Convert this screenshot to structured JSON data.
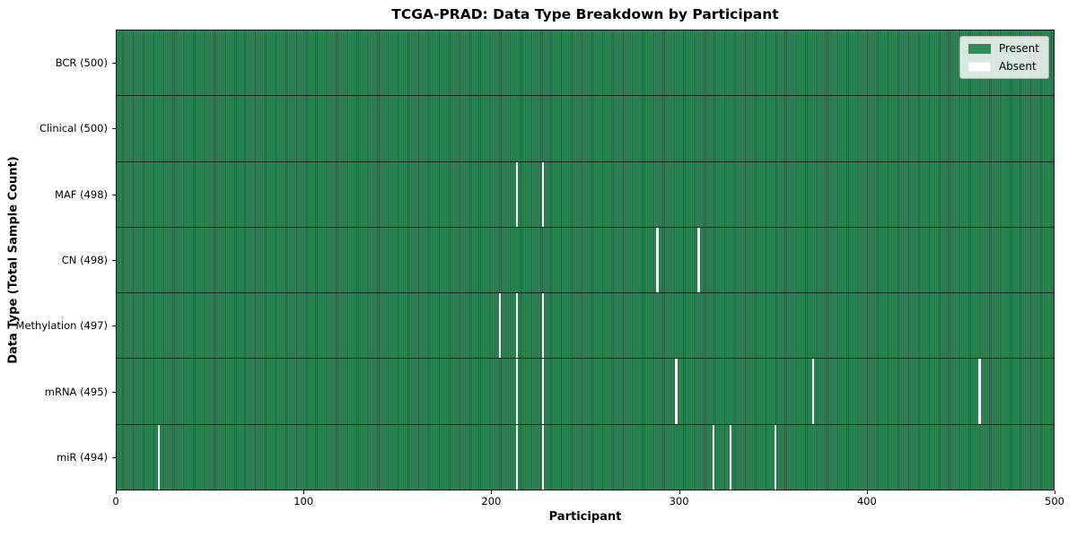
{
  "chart_data": {
    "type": "heatmap",
    "title": "TCGA-PRAD: Data Type Breakdown by Participant",
    "xlabel": "Participant",
    "ylabel": "Data Type (Total Sample Count)",
    "xlim": [
      0,
      500
    ],
    "n_participants": 500,
    "x_ticks": [
      0,
      100,
      200,
      300,
      400,
      500
    ],
    "grid": false,
    "legend_position": "upper right",
    "legend_items": [
      {
        "label": "Present",
        "color": "#2e8b57"
      },
      {
        "label": "Absent",
        "color": "#ffffff"
      }
    ],
    "colors": {
      "present": "#2e8b57",
      "present_stripe_dark": "#1f5d3b",
      "absent": "#ffffff",
      "row_divider": "#1a231b",
      "spine": "#1a1a1a",
      "text": "#000000"
    },
    "rows": [
      {
        "label": "BCR (500)",
        "data_type": "BCR",
        "total_samples": 500,
        "absent_participants": []
      },
      {
        "label": "Clinical (500)",
        "data_type": "Clinical",
        "total_samples": 500,
        "absent_participants": []
      },
      {
        "label": "MAF (498)",
        "data_type": "MAF",
        "total_samples": 498,
        "absent_participants": [
          213,
          227
        ]
      },
      {
        "label": "CN (498)",
        "data_type": "CN",
        "total_samples": 498,
        "absent_participants": [
          288,
          310
        ]
      },
      {
        "label": "Methylation (497)",
        "data_type": "Methylation",
        "total_samples": 497,
        "absent_participants": [
          204,
          213,
          227
        ]
      },
      {
        "label": "mRNA (495)",
        "data_type": "mRNA",
        "total_samples": 495,
        "absent_participants": [
          213,
          227,
          298,
          371,
          460
        ]
      },
      {
        "label": "miR (494)",
        "data_type": "miR",
        "total_samples": 494,
        "absent_participants": [
          22,
          213,
          227,
          318,
          327,
          351
        ]
      }
    ]
  }
}
